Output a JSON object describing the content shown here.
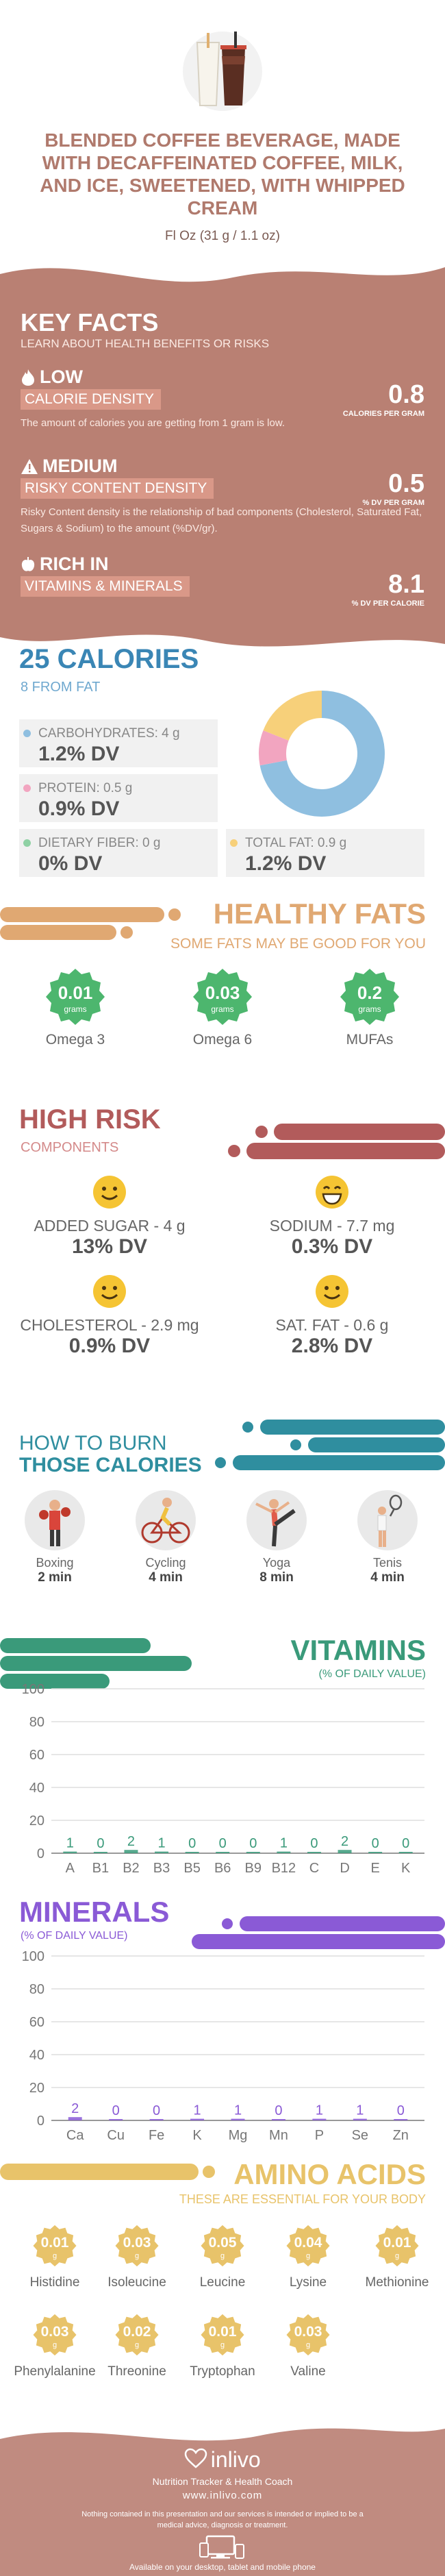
{
  "header": {
    "title": "BLENDED COFFEE BEVERAGE, MADE WITH DECAFFEINATED COFFEE, MILK, AND ICE, SWEETENED, WITH WHIPPED CREAM",
    "serving": "Fl Oz (31 g / 1.1 oz)"
  },
  "key_facts": {
    "title": "KEY FACTS",
    "subtitle": "LEARN ABOUT HEALTH BENEFITS OR RISKS",
    "items": [
      {
        "level": "LOW",
        "label": "CALORIE DENSITY",
        "desc": "The amount of calories you are getting from 1 gram is low.",
        "value": "0.8",
        "unit": "CALORIES PER GRAM",
        "icon": "flame-icon"
      },
      {
        "level": "MEDIUM",
        "label": "RISKY CONTENT DENSITY",
        "desc": "Risky Content density is the relationship of bad components (Cholesterol, Saturated Fat, Sugars & Sodium) to the amount (%DV/gr).",
        "value": "0.5",
        "unit": "% DV PER GRAM",
        "icon": "warning-icon"
      },
      {
        "level": "RICH  IN",
        "label": "VITAMINS & MINERALS",
        "desc": "",
        "value": "8.1",
        "unit": "% DV PER CALORIE",
        "icon": "apple-icon"
      }
    ]
  },
  "calories": {
    "title": "25 CALORIES",
    "subtitle": "8 FROM FAT",
    "macros": [
      {
        "label": "CARBOHYDRATES: 4 g",
        "dv": "1.2% DV",
        "color": "#8fbfe0"
      },
      {
        "label": "PROTEIN: 0.5 g",
        "dv": "0.9% DV",
        "color": "#f2a5c0"
      },
      {
        "label": "DIETARY FIBER: 0 g",
        "dv": "0% DV",
        "color": "#8fd1a4"
      },
      {
        "label": "TOTAL FAT: 0.9 g",
        "dv": "1.2% DV",
        "color": "#f7d07a"
      }
    ],
    "donut": [
      {
        "name": "carbohydrates",
        "value": 72,
        "color": "#8fbfe0"
      },
      {
        "name": "protein",
        "value": 9,
        "color": "#f2a5c0"
      },
      {
        "name": "fat",
        "value": 19,
        "color": "#f7d07a"
      }
    ]
  },
  "healthy_fats": {
    "title": "HEALTHY FATS",
    "subtitle": "SOME FATS MAY BE GOOD FOR YOU",
    "unit": "grams",
    "items": [
      {
        "value": "0.01",
        "name": "Omega 3"
      },
      {
        "value": "0.03",
        "name": "Omega 6"
      },
      {
        "value": "0.2",
        "name": "MUFAs"
      }
    ]
  },
  "high_risk": {
    "title": "HIGH RISK",
    "subtitle": "COMPONENTS",
    "items": [
      {
        "label": "ADDED SUGAR - 4 g",
        "dv": "13% DV",
        "icon": "smiley-icon"
      },
      {
        "label": "SODIUM - 7.7 mg",
        "dv": "0.3% DV",
        "icon": "grin-icon"
      },
      {
        "label": "CHOLESTEROL - 2.9 mg",
        "dv": "0.9% DV",
        "icon": "smiley-icon"
      },
      {
        "label": "SAT. FAT - 0.6 g",
        "dv": "2.8% DV",
        "icon": "smiley-icon"
      }
    ]
  },
  "burn": {
    "title_line1": "HOW TO BURN",
    "title_line2": "THOSE CALORIES",
    "activities": [
      {
        "name": "Boxing",
        "time": "2 min",
        "icon": "boxing-icon"
      },
      {
        "name": "Cycling",
        "time": "4 min",
        "icon": "cycling-icon"
      },
      {
        "name": "Yoga",
        "time": "8 min",
        "icon": "yoga-icon"
      },
      {
        "name": "Tenis",
        "time": "4 min",
        "icon": "tennis-icon"
      }
    ]
  },
  "vitamins": {
    "title": "VITAMINS",
    "subtitle": "(% OF DAILY VALUE)",
    "color": "#3a9a7a",
    "chart_data": {
      "type": "bar",
      "categories": [
        "A",
        "B1",
        "B2",
        "B3",
        "B5",
        "B6",
        "B9",
        "B12",
        "C",
        "D",
        "E",
        "K"
      ],
      "values": [
        1,
        0,
        2,
        1,
        0,
        0,
        0,
        1,
        0,
        2,
        0,
        0
      ],
      "ylim": [
        0,
        100
      ],
      "yticks": [
        0,
        20,
        40,
        60,
        80,
        100
      ]
    }
  },
  "minerals": {
    "title": "MINERALS",
    "subtitle": "(% OF DAILY VALUE)",
    "color": "#8a5ad6",
    "chart_data": {
      "type": "bar",
      "categories": [
        "Ca",
        "Cu",
        "Fe",
        "K",
        "Mg",
        "Mn",
        "P",
        "Se",
        "Zn"
      ],
      "values": [
        2,
        0,
        0,
        1,
        1,
        0,
        1,
        1,
        0
      ],
      "ylim": [
        0,
        100
      ],
      "yticks": [
        0,
        20,
        40,
        60,
        80,
        100
      ]
    }
  },
  "amino": {
    "title": "AMINO ACIDS",
    "subtitle": "THESE ARE ESSENTIAL FOR YOUR BODY",
    "unit": "g",
    "items": [
      {
        "value": "0.01",
        "name": "Histidine"
      },
      {
        "value": "0.03",
        "name": "Isoleucine"
      },
      {
        "value": "0.05",
        "name": "Leucine"
      },
      {
        "value": "0.04",
        "name": "Lysine"
      },
      {
        "value": "0.01",
        "name": "Methionine"
      },
      {
        "value": "0.03",
        "name": "Phenylalanine"
      },
      {
        "value": "0.02",
        "name": "Threonine"
      },
      {
        "value": "0.01",
        "name": "Tryptophan"
      },
      {
        "value": "0.03",
        "name": "Valine"
      }
    ]
  },
  "footer": {
    "brand": "inlivo",
    "tagline": "Nutrition Tracker & Health Coach",
    "url": "www.inlivo.com",
    "disclaimer": "Nothing contained in this presentation and our services is intended or implied to be a medical advice, diagnosis or treatment.",
    "devices": "Available on your desktop, tablet and mobile phone",
    "bg_color": "#c08b80"
  }
}
